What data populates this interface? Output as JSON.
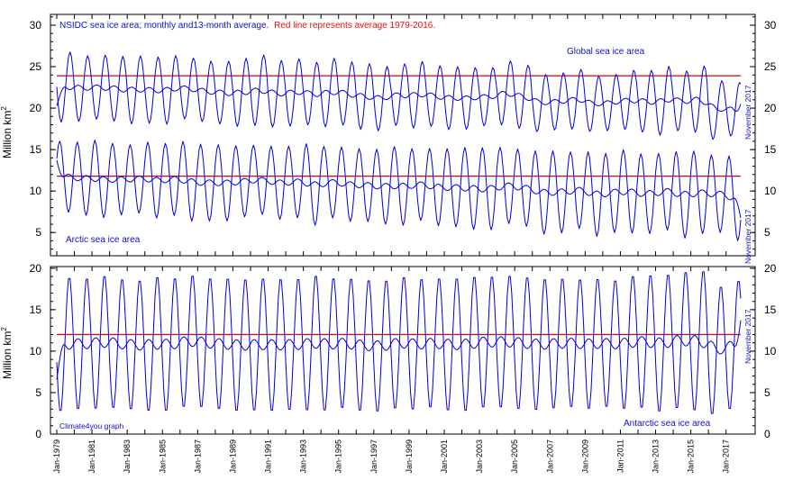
{
  "chart_data": {
    "type": "line",
    "title": {
      "part1": "NSIDC sea ice area; monthly and13-month average.",
      "part2": "Red line represents average 1979-2016.",
      "part1_color": "#1010c0",
      "part2_color": "#e01010"
    },
    "ylabel_units": "Million km",
    "ylabel_sup": "2",
    "credit": "Climate4you graph",
    "end_label": "November 2017",
    "colors": {
      "series": "#0000dd",
      "average_line": "#e00000",
      "axes": "#000000"
    },
    "x_tick_labels": [
      "Jan-1979",
      "Jan-1981",
      "Jan-1983",
      "Jan-1985",
      "Jan-1987",
      "Jan-1989",
      "Jan-1991",
      "Jan-1993",
      "Jan-1995",
      "Jan-1997",
      "Jan-1999",
      "Jan-2001",
      "Jan-2003",
      "Jan-2005",
      "Jan-2007",
      "Jan-2009",
      "Jan-2011",
      "Jan-2013",
      "Jan-2015",
      "Jan-2017"
    ],
    "x_range": [
      "Jan-1979",
      "Nov-2017"
    ],
    "panels": [
      {
        "id": "upper",
        "ylim": [
          5,
          30
        ],
        "y_ticks": [
          5,
          10,
          15,
          20,
          25,
          30
        ],
        "series": [
          {
            "name": "Global sea ice area",
            "monthly_min": 19.0,
            "monthly_max": 27.5,
            "avg13_start": 24.2,
            "avg13_end": 21.6,
            "reference_average": 23.9,
            "last_value": 24.0
          },
          {
            "name": "Arctic sea ice area",
            "monthly_min_start": 7.5,
            "monthly_min_end": 4.5,
            "monthly_max_start": 16.0,
            "monthly_max_end": 14.5,
            "avg13_start": 12.8,
            "avg13_end": 10.2,
            "reference_average": 11.8,
            "last_value": 9.0
          }
        ]
      },
      {
        "id": "lower",
        "ylim": [
          0,
          20
        ],
        "y_ticks": [
          0,
          5,
          10,
          15,
          20
        ],
        "series": [
          {
            "name": "Antarctic sea ice area",
            "monthly_min": 2.8,
            "monthly_max": 19.0,
            "avg13_start": 11.9,
            "avg13_end": 11.3,
            "reference_average": 12.0,
            "last_value": 15.0
          }
        ]
      }
    ]
  }
}
